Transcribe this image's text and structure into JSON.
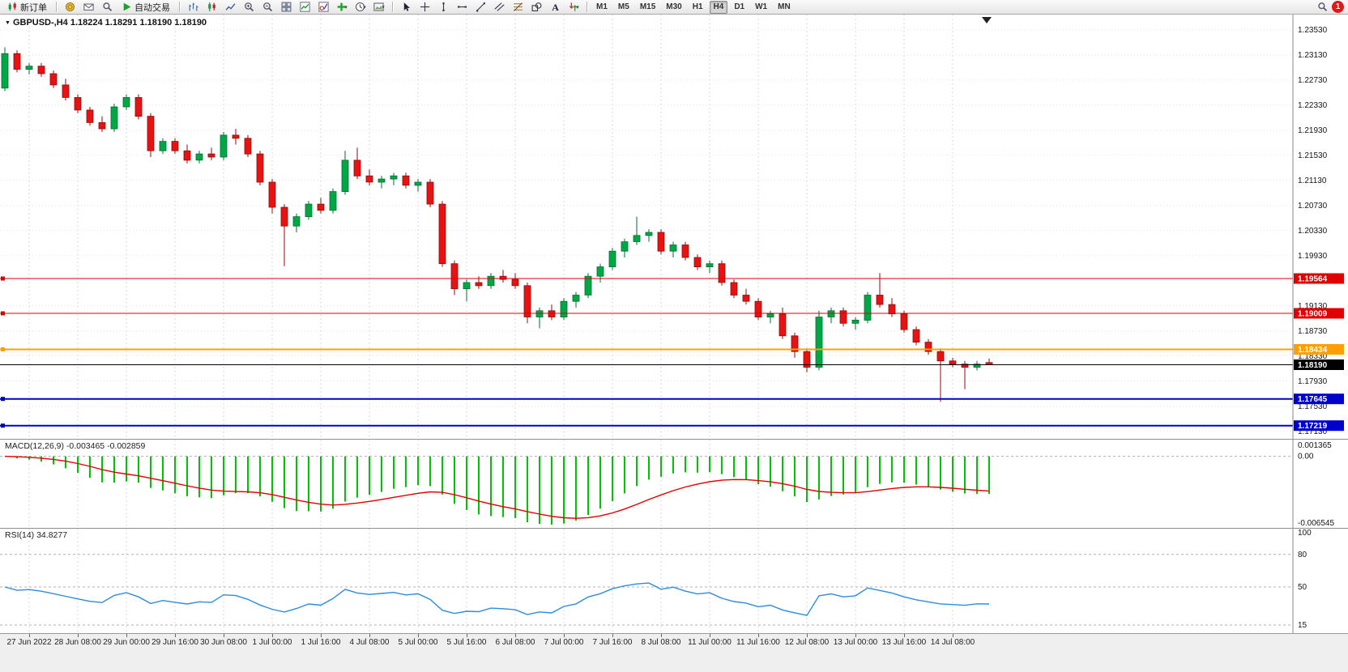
{
  "toolbar": {
    "items": [
      {
        "type": "button",
        "name": "new-order-button",
        "icon": "new-order",
        "label": "新订单"
      },
      {
        "type": "sep"
      },
      {
        "type": "icon",
        "name": "funds-button",
        "icon": "coins"
      },
      {
        "type": "icon",
        "name": "mailbox-button",
        "icon": "envelope"
      },
      {
        "type": "icon",
        "name": "market-watch-button",
        "icon": "magnifier"
      },
      {
        "type": "button",
        "name": "auto-trading-button",
        "icon": "play",
        "label": "自动交易"
      },
      {
        "type": "sep"
      },
      {
        "type": "icon",
        "name": "bars-chart-button",
        "icon": "bars-chart"
      },
      {
        "type": "icon",
        "name": "candles-chart-button",
        "icon": "candles-chart"
      },
      {
        "type": "icon",
        "name": "line-chart-button",
        "icon": "line-chart"
      },
      {
        "type": "icon",
        "name": "zoom-in-button",
        "icon": "zoom-in"
      },
      {
        "type": "icon",
        "name": "zoom-out-button",
        "icon": "zoom-out"
      },
      {
        "type": "icon",
        "name": "tile-windows-button",
        "icon": "tile-windows"
      },
      {
        "type": "icon",
        "name": "indicators-button",
        "icon": "indicators"
      },
      {
        "type": "icon",
        "name": "objects-button",
        "icon": "objects"
      },
      {
        "type": "icon",
        "name": "add-indicator-button",
        "icon": "add-indicator",
        "caret": true
      },
      {
        "type": "icon",
        "name": "periods-button",
        "icon": "clock",
        "caret": true
      },
      {
        "type": "icon",
        "name": "templates-button",
        "icon": "template",
        "caret": true
      },
      {
        "type": "sep"
      },
      {
        "type": "icon",
        "name": "cursor-button",
        "icon": "cursor"
      },
      {
        "type": "icon",
        "name": "crosshair-button",
        "icon": "crosshair"
      },
      {
        "type": "icon",
        "name": "vertical-line-button",
        "icon": "vline"
      },
      {
        "type": "icon",
        "name": "horizontal-line-button",
        "icon": "hline"
      },
      {
        "type": "icon",
        "name": "trendline-button",
        "icon": "trendline"
      },
      {
        "type": "icon",
        "name": "channel-button",
        "icon": "channel"
      },
      {
        "type": "icon",
        "name": "fibonacci-button",
        "icon": "fibo"
      },
      {
        "type": "icon",
        "name": "shapes-button",
        "icon": "shapes"
      },
      {
        "type": "icon",
        "name": "text-button",
        "icon": "text"
      },
      {
        "type": "icon",
        "name": "arrows-button",
        "icon": "arrows",
        "caret": true
      },
      {
        "type": "sep"
      },
      {
        "type": "timeframes"
      },
      {
        "type": "spacer"
      },
      {
        "type": "icon",
        "name": "search-button",
        "icon": "magnifier"
      },
      {
        "type": "badge"
      }
    ],
    "timeframes": [
      "M1",
      "M5",
      "M15",
      "M30",
      "H1",
      "H4",
      "D1",
      "W1",
      "MN"
    ],
    "active_timeframe": "H4",
    "notification_badge": "1"
  },
  "main_chart": {
    "title": "GBPUSD-,H4  1.18224 1.18291 1.18190 1.18190",
    "price_top": 1.2372,
    "price_bottom": 1.1706,
    "price_axis": [
      "1.23530",
      "1.23130",
      "1.22730",
      "1.22330",
      "1.21930",
      "1.21530",
      "1.21130",
      "1.20730",
      "1.20330",
      "1.19930",
      "1.19130",
      "1.18730",
      "1.18330",
      "1.17930",
      "1.17530",
      "1.17130"
    ],
    "hlines": [
      {
        "price": 1.19564,
        "label": "1.19564",
        "color": "#e00000",
        "width": 1,
        "handle": true
      },
      {
        "price": 1.19009,
        "label": "1.19009",
        "color": "#e00000",
        "width": 1,
        "handle": true
      },
      {
        "price": 1.18434,
        "label": "1.18434",
        "color": "#ffa000",
        "width": 2,
        "handle": true
      },
      {
        "price": 1.1819,
        "label": "1.18190",
        "color": "#000000",
        "width": 1,
        "handle": false
      },
      {
        "price": 1.17645,
        "label": "1.17645",
        "color": "#0000cd",
        "width": 2,
        "handle": true
      },
      {
        "price": 1.17219,
        "label": "1.17219",
        "color": "#0000cd",
        "width": 2,
        "handle": true
      }
    ]
  },
  "chart_data": {
    "type": "candlestick",
    "symbol": "GBPUSD-",
    "timeframe": "H4",
    "up_color": "#00a843",
    "down_color": "#e81212",
    "first_label_index": 2,
    "label_every": 4,
    "candles": [
      [
        1.226,
        1.2325,
        1.2255,
        1.2315
      ],
      [
        1.2315,
        1.232,
        1.2285,
        1.229
      ],
      [
        1.229,
        1.23,
        1.2282,
        1.2295
      ],
      [
        1.2295,
        1.23,
        1.2278,
        1.2283
      ],
      [
        1.2283,
        1.2288,
        1.226,
        1.2265
      ],
      [
        1.2265,
        1.2275,
        1.224,
        1.2245
      ],
      [
        1.2245,
        1.225,
        1.222,
        1.2225
      ],
      [
        1.2225,
        1.223,
        1.22,
        1.2205
      ],
      [
        1.2205,
        1.2215,
        1.219,
        1.2195
      ],
      [
        1.2195,
        1.2235,
        1.219,
        1.223
      ],
      [
        1.223,
        1.225,
        1.2225,
        1.2245
      ],
      [
        1.2245,
        1.225,
        1.221,
        1.2215
      ],
      [
        1.2215,
        1.222,
        1.215,
        1.216
      ],
      [
        1.216,
        1.218,
        1.2155,
        1.2175
      ],
      [
        1.2175,
        1.218,
        1.2155,
        1.216
      ],
      [
        1.216,
        1.217,
        1.214,
        1.2145
      ],
      [
        1.2145,
        1.216,
        1.214,
        1.2155
      ],
      [
        1.2155,
        1.2165,
        1.2145,
        1.215
      ],
      [
        1.215,
        1.219,
        1.2145,
        1.2185
      ],
      [
        1.2185,
        1.2195,
        1.217,
        1.218
      ],
      [
        1.218,
        1.2185,
        1.215,
        1.2155
      ],
      [
        1.2155,
        1.216,
        1.2105,
        1.211
      ],
      [
        1.211,
        1.2115,
        1.206,
        1.207
      ],
      [
        1.207,
        1.2075,
        1.1976,
        1.204
      ],
      [
        1.204,
        1.206,
        1.203,
        1.2055
      ],
      [
        1.2055,
        1.208,
        1.205,
        1.2075
      ],
      [
        1.2075,
        1.2085,
        1.206,
        1.2065
      ],
      [
        1.2065,
        1.21,
        1.206,
        1.2095
      ],
      [
        1.2095,
        1.216,
        1.209,
        1.2145
      ],
      [
        1.2145,
        1.2165,
        1.2115,
        1.212
      ],
      [
        1.212,
        1.213,
        1.2105,
        1.211
      ],
      [
        1.211,
        1.212,
        1.21,
        1.2115
      ],
      [
        1.2115,
        1.2125,
        1.2105,
        1.212
      ],
      [
        1.212,
        1.2125,
        1.21,
        1.2105
      ],
      [
        1.2105,
        1.2115,
        1.2095,
        1.211
      ],
      [
        1.211,
        1.2115,
        1.207,
        1.2075
      ],
      [
        1.2075,
        1.208,
        1.1975,
        1.198
      ],
      [
        1.198,
        1.1985,
        1.193,
        1.194
      ],
      [
        1.194,
        1.1955,
        1.192,
        1.195
      ],
      [
        1.195,
        1.196,
        1.194,
        1.1945
      ],
      [
        1.1945,
        1.1965,
        1.194,
        1.196
      ],
      [
        1.196,
        1.197,
        1.195,
        1.1955
      ],
      [
        1.1955,
        1.1965,
        1.194,
        1.1945
      ],
      [
        1.1945,
        1.195,
        1.1885,
        1.1895
      ],
      [
        1.1895,
        1.191,
        1.1877,
        1.1905
      ],
      [
        1.1905,
        1.1915,
        1.189,
        1.1895
      ],
      [
        1.1895,
        1.1925,
        1.189,
        1.192
      ],
      [
        1.192,
        1.1935,
        1.191,
        1.193
      ],
      [
        1.193,
        1.1965,
        1.1925,
        1.196
      ],
      [
        1.196,
        1.198,
        1.195,
        1.1975
      ],
      [
        1.1975,
        1.2005,
        1.197,
        1.2
      ],
      [
        1.2,
        1.202,
        1.199,
        1.2015
      ],
      [
        1.2015,
        1.2055,
        1.201,
        1.2025
      ],
      [
        1.2025,
        1.2035,
        1.2015,
        1.203
      ],
      [
        1.203,
        1.2035,
        1.1995,
        1.2
      ],
      [
        1.2,
        1.2015,
        1.199,
        1.201
      ],
      [
        1.201,
        1.2015,
        1.1985,
        1.199
      ],
      [
        1.199,
        1.1995,
        1.197,
        1.1975
      ],
      [
        1.1975,
        1.1985,
        1.1965,
        1.198
      ],
      [
        1.198,
        1.1985,
        1.1945,
        1.195
      ],
      [
        1.195,
        1.1955,
        1.1925,
        1.193
      ],
      [
        1.193,
        1.194,
        1.1915,
        1.192
      ],
      [
        1.192,
        1.1925,
        1.189,
        1.1895
      ],
      [
        1.1895,
        1.1905,
        1.1885,
        1.19
      ],
      [
        1.19,
        1.191,
        1.186,
        1.1865
      ],
      [
        1.1865,
        1.187,
        1.183,
        1.184
      ],
      [
        1.184,
        1.1845,
        1.1807,
        1.1815
      ],
      [
        1.1815,
        1.1905,
        1.181,
        1.1895
      ],
      [
        1.1895,
        1.191,
        1.1885,
        1.1905
      ],
      [
        1.1905,
        1.191,
        1.188,
        1.1885
      ],
      [
        1.1885,
        1.1895,
        1.1875,
        1.189
      ],
      [
        1.189,
        1.1935,
        1.1885,
        1.193
      ],
      [
        1.193,
        1.1965,
        1.191,
        1.1915
      ],
      [
        1.1915,
        1.1925,
        1.1895,
        1.19
      ],
      [
        1.19,
        1.1905,
        1.187,
        1.1875
      ],
      [
        1.1875,
        1.188,
        1.185,
        1.1855
      ],
      [
        1.1855,
        1.186,
        1.1835,
        1.184
      ],
      [
        1.184,
        1.1845,
        1.176,
        1.1825
      ],
      [
        1.1825,
        1.183,
        1.1815,
        1.182
      ],
      [
        1.182,
        1.1825,
        1.178,
        1.1815
      ],
      [
        1.1815,
        1.1825,
        1.181,
        1.182
      ],
      [
        1.18224,
        1.18291,
        1.1819,
        1.1819
      ]
    ]
  },
  "macd_panel": {
    "label": "MACD(12,26,9) -0.003465 -0.002859",
    "fast": 12,
    "slow": 26,
    "signal": 9,
    "max": 0.001365,
    "min": -0.006545,
    "axis": [
      "0.001365",
      "0.00",
      "-0.006545"
    ],
    "histogram_color": "#00c400",
    "signal_color": "#e00000"
  },
  "rsi_panel": {
    "label": "RSI(14) 34.8277",
    "period": 14,
    "axis": [
      "100",
      "80",
      "50",
      "15"
    ],
    "levels": [
      80,
      50,
      15
    ],
    "scale_max": 100,
    "scale_min": 12,
    "line_color": "#2d8ce0"
  },
  "time_axis": [
    "27 Jun 2022",
    "28 Jun 08:00",
    "29 Jun 00:00",
    "29 Jun 16:00",
    "30 Jun 08:00",
    "1 Jul 00:00",
    "1 Jul 16:00",
    "4 Jul 08:00",
    "5 Jul 00:00",
    "5 Jul 16:00",
    "6 Jul 08:00",
    "7 Jul 00:00",
    "7 Jul 16:00",
    "8 Jul 08:00",
    "11 Jul 00:00",
    "11 Jul 16:00",
    "12 Jul 08:00",
    "13 Jul 00:00",
    "13 Jul 16:00",
    "14 Jul 08:00"
  ]
}
